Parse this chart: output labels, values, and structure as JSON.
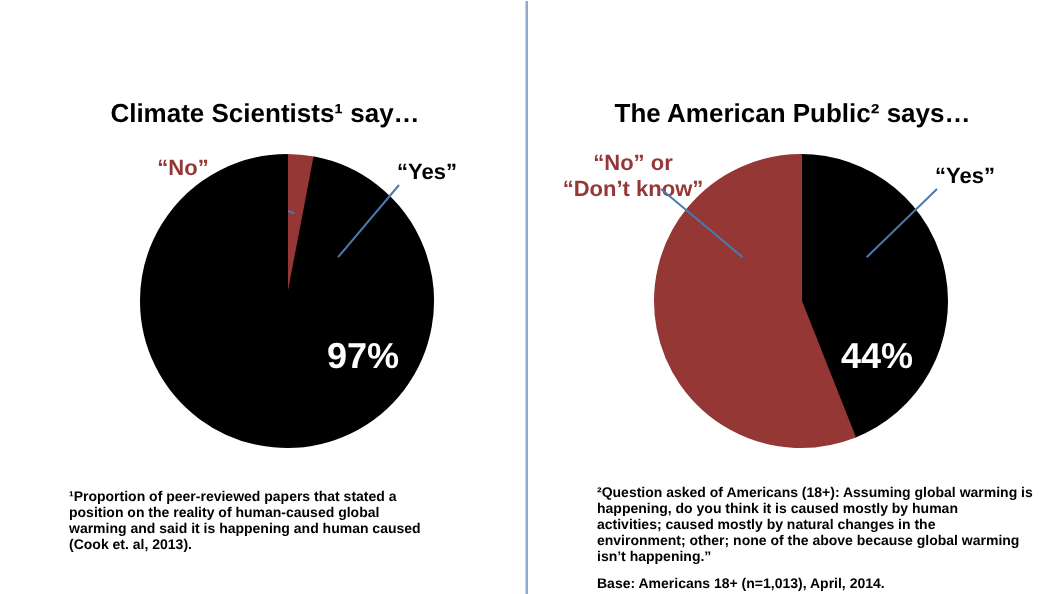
{
  "chart_data": [
    {
      "type": "pie",
      "title": "Climate Scientists¹ say…",
      "categories": [
        "“No”",
        "“Yes”"
      ],
      "values": [
        3,
        97
      ],
      "colors": [
        "#953735",
        "#000000"
      ],
      "value_labels": [
        null,
        "97%"
      ],
      "annotations": [
        "¹Proportion of peer-reviewed papers that stated a position on the reality of human-caused global warming and said it is happening and human caused (Cook et. al, 2013)."
      ]
    },
    {
      "type": "pie",
      "title": "The American Public² says…",
      "categories": [
        "“Yes”",
        "“No” or\n“Don’t know”"
      ],
      "values": [
        44,
        56
      ],
      "colors": [
        "#000000",
        "#953735"
      ],
      "value_labels": [
        "44%",
        null
      ],
      "annotations": [
        "²Question asked of Americans (18+): Assuming global warming is happening, do you think it is caused mostly by human activities; caused mostly by natural changes in the environment; other; none of the above because global warming isn’t happening.”",
        "Base: Americans 18+ (n=1,013), April, 2014."
      ]
    }
  ]
}
